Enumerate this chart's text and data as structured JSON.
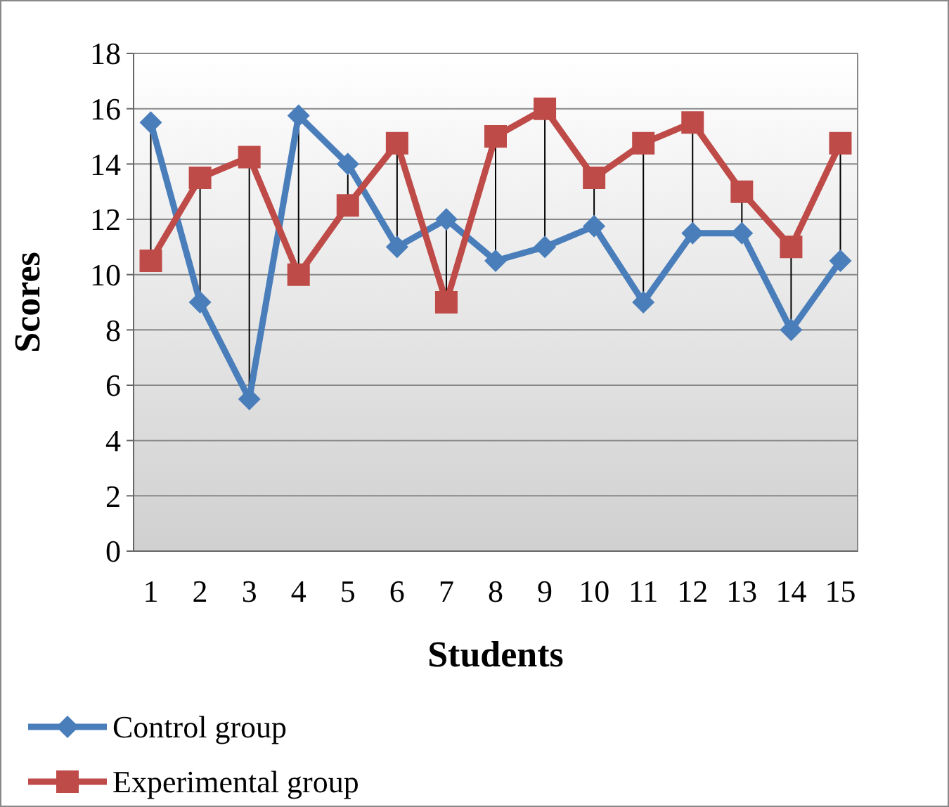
{
  "chart_data": {
    "type": "line",
    "xlabel": "Students",
    "ylabel": "Scores",
    "categories": [
      "1",
      "2",
      "3",
      "4",
      "5",
      "6",
      "7",
      "8",
      "9",
      "10",
      "11",
      "12",
      "13",
      "14",
      "15"
    ],
    "series": [
      {
        "name": "Control group",
        "color": "#4a7ebb",
        "marker": "diamond",
        "values": [
          15.5,
          9,
          5.5,
          15.75,
          14,
          11,
          12,
          10.5,
          11,
          11.75,
          9,
          11.5,
          11.5,
          8,
          10.5
        ]
      },
      {
        "name": "Experimental group",
        "color": "#be4b48",
        "marker": "square",
        "values": [
          10.5,
          13.5,
          14.25,
          10,
          12.5,
          14.75,
          9,
          15,
          16,
          13.5,
          14.75,
          15.5,
          13,
          11,
          14.75
        ]
      }
    ],
    "ylim": [
      0,
      18
    ],
    "yticks": [
      0,
      2,
      4,
      6,
      8,
      10,
      12,
      14,
      16,
      18
    ],
    "grid": "y",
    "legend": "bottom",
    "line_style": "solid"
  }
}
